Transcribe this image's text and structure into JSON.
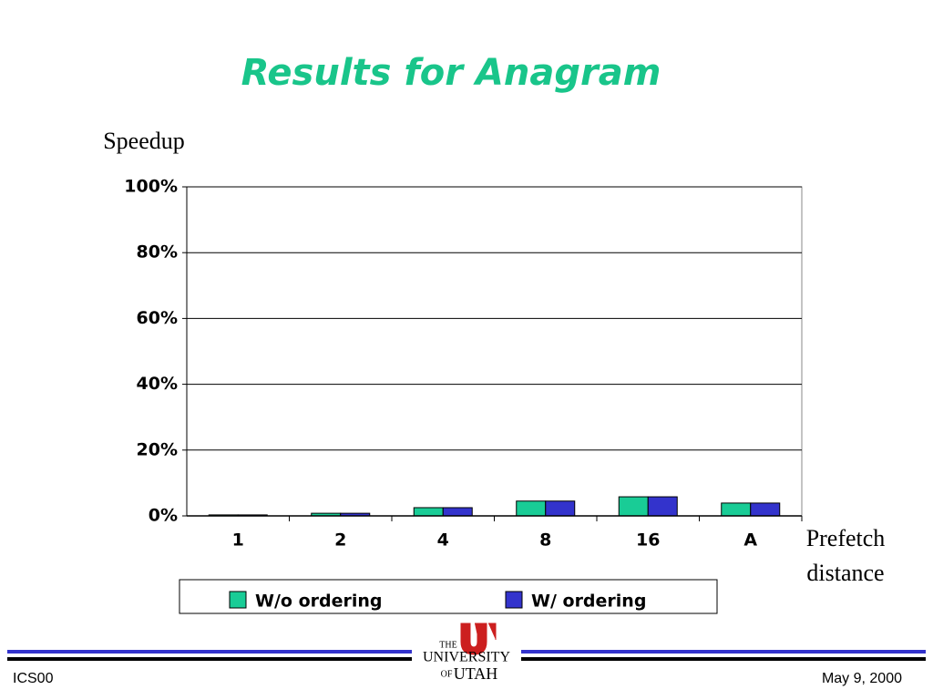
{
  "chart_data": {
    "type": "bar",
    "title": "Results for Anagram",
    "y_label": "Speedup",
    "x_label": "Prefetch distance",
    "categories": [
      "1",
      "2",
      "4",
      "8",
      "16",
      "A"
    ],
    "series": [
      {
        "name": "W/o ordering",
        "color": "#19cc96",
        "values": [
          0.3,
          0.8,
          2.5,
          4.5,
          5.8,
          3.9
        ]
      },
      {
        "name": "W/ ordering",
        "color": "#3333cc",
        "values": [
          0.3,
          0.8,
          2.5,
          4.5,
          5.8,
          3.9
        ]
      }
    ],
    "ylim": [
      0,
      100
    ],
    "yticks": [
      {
        "value": 0,
        "label": "0%"
      },
      {
        "value": 20,
        "label": "20%"
      },
      {
        "value": 40,
        "label": "40%"
      },
      {
        "value": 60,
        "label": "60%"
      },
      {
        "value": 80,
        "label": "80%"
      },
      {
        "value": 100,
        "label": "100%"
      }
    ],
    "grid": true,
    "legend": "bottom"
  },
  "footer": {
    "left": "ICS00",
    "right": "May 9, 2000",
    "logo": [
      "THE",
      "UNIVERSITY",
      "OF",
      "UTAH"
    ]
  }
}
